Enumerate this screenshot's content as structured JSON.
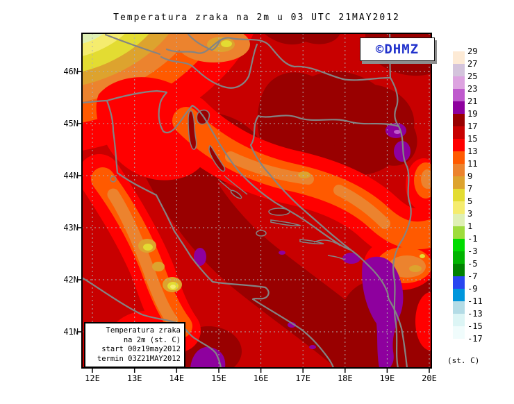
{
  "title": "Temperatura zraka na 2m u 03 UTC 21MAY2012",
  "watermark": "©DHMZ",
  "axes": {
    "lat_labels": [
      "46N",
      "45N",
      "44N",
      "43N",
      "42N",
      "41N"
    ],
    "lon_labels": [
      "12E",
      "13E",
      "14E",
      "15E",
      "16E",
      "17E",
      "18E",
      "19E",
      "20E"
    ]
  },
  "info_box": {
    "lines": [
      "Temperatura zraka",
      "na 2m (st. C)",
      "start 00z19may2012",
      "termin 03Z21MAY2012"
    ]
  },
  "colorbar": {
    "units": "(st. C)",
    "labels": [
      "29",
      "27",
      "25",
      "23",
      "21",
      "19",
      "17",
      "15",
      "13",
      "11",
      "9",
      "7",
      "5",
      "3",
      "1",
      "-1",
      "-3",
      "-5",
      "-7",
      "-9",
      "-11",
      "-13",
      "-15",
      "-17"
    ],
    "colors": [
      "#fdead5",
      "#d4c4dc",
      "#dda3e0",
      "#bf5acd",
      "#8e009e",
      "#990000",
      "#c80000",
      "#ff0000",
      "#ff5a00",
      "#ec832e",
      "#dda32e",
      "#e3dc32",
      "#f5ec6e",
      "#dff0b4",
      "#9edc3c",
      "#00dc00",
      "#00b400",
      "#008200",
      "#2846f0",
      "#0096dc",
      "#b4dce6",
      "#dcf5f5",
      "#f0fcfc"
    ]
  },
  "map_colors": {
    "coastline_border_gray": "#848484",
    "gridline_gray": "#b0b0b0",
    "frame_black": "#000000"
  },
  "chart_data": {
    "type": "heatmap",
    "subtype": "filled-contour weather map (GrADS style)",
    "title": "Temperatura zraka na 2m u 03 UTC 21MAY2012",
    "field": "air temperature at 2 m",
    "valid_time": "03 UTC 21MAY2012",
    "model_start": "00z19may2012",
    "termin": "03Z21MAY2012",
    "units": "st. C",
    "xlabel_ticks": [
      "12E",
      "13E",
      "14E",
      "15E",
      "16E",
      "17E",
      "18E",
      "19E",
      "20E"
    ],
    "ylabel_ticks": [
      "46N",
      "45N",
      "44N",
      "43N",
      "42N",
      "41N"
    ],
    "xlim_deg_east": [
      11.75,
      20.05
    ],
    "ylim_deg_north": [
      40.3,
      46.75
    ],
    "grid": true,
    "legend_position": "right colorbar",
    "contour_interval_deg_c": 2,
    "levels_deg_c": [
      29,
      27,
      25,
      23,
      21,
      19,
      17,
      15,
      13,
      11,
      9,
      7,
      5,
      3,
      1,
      -1,
      -3,
      -5,
      -7,
      -9,
      -11,
      -13,
      -15,
      -17
    ],
    "palette_hex_top_to_bottom": [
      "#fdead5",
      "#d4c4dc",
      "#dda3e0",
      "#bf5acd",
      "#8e009e",
      "#990000",
      "#c80000",
      "#ff0000",
      "#ff5a00",
      "#ec832e",
      "#dda32e",
      "#e3dc32",
      "#f5ec6e",
      "#dff0b4",
      "#9edc3c",
      "#00dc00",
      "#00b400",
      "#008200",
      "#2846f0",
      "#0096dc",
      "#b4dce6",
      "#dcf5f5",
      "#f0fcfc"
    ],
    "field_features": [
      {
        "region": "Alps, NW corner of map",
        "approx_temp_c": "1 to 9 (coldest, pale green/yellow bands)"
      },
      {
        "region": "top edge near Slovenia",
        "approx_temp_c": "7 to 11 (orange/amber patch)"
      },
      {
        "region": "Po valley / N Adriatic coast",
        "approx_temp_c": "13 to 15 (bright red)"
      },
      {
        "region": "open Adriatic Sea",
        "approx_temp_c": "17 to 19 (dark red band)"
      },
      {
        "region": "inland Croatia / Slavonia / N Bosnia",
        "approx_temp_c": "15 to 19 (red with dark red blobs)"
      },
      {
        "region": "Dinaric mountain belt NW-SE",
        "approx_temp_c": "9 to 13 (orange band)"
      },
      {
        "region": "Apennines in Italy, lower left",
        "approx_temp_c": "3 to 11 (orange band with yellow cores)"
      },
      {
        "region": "Montenegro coast and S Italy spots",
        "approx_temp_c": "19 to 23 (purple, warmest)"
      },
      {
        "region": "E Bosnia mountains near right edge",
        "approx_temp_c": "19 to 21 (purple spots)"
      }
    ]
  }
}
